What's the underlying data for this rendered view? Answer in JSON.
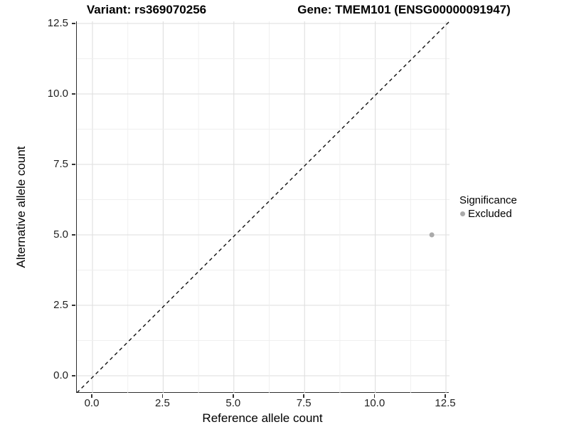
{
  "chart_data": {
    "type": "scatter",
    "titles": {
      "left": "Variant: rs369070256",
      "right": "Gene: TMEM101 (ENSG00000091947)"
    },
    "x_axis": {
      "label": "Reference allele count",
      "tick_labels": [
        "0.0",
        "2.5",
        "5.0",
        "7.5",
        "10.0",
        "12.5"
      ],
      "range": [
        -0.58,
        12.63
      ]
    },
    "y_axis": {
      "label": "Alternative allele count",
      "tick_labels": [
        "0.0",
        "2.5",
        "5.0",
        "7.5",
        "10.0",
        "12.5"
      ],
      "range": [
        -0.6,
        12.58
      ]
    },
    "grid": {
      "major_every": 2.5,
      "minor_every": 1.25,
      "max": 12.5,
      "major_color": "#dedede",
      "minor_color": "#efefef"
    },
    "reference_line": {
      "slope": 1,
      "intercept": 0,
      "style": "dashed",
      "color": "#111111"
    },
    "series": [
      {
        "name": "Excluded",
        "color": "#aaaaaa",
        "point_radius": 3.5,
        "points": [
          {
            "x": 12,
            "y": 5
          }
        ]
      }
    ],
    "legend": {
      "title": "Significance",
      "position": "right",
      "entries": [
        {
          "label": "Excluded",
          "color": "#aaaaaa"
        }
      ]
    }
  }
}
